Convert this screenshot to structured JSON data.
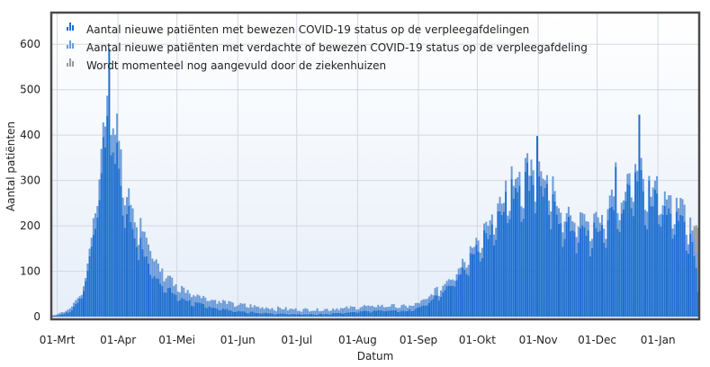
{
  "chart_data": {
    "type": "bar",
    "stacked": true,
    "xlabel": "Datum",
    "ylabel": "Aantal patiënten",
    "ylim": [
      0,
      650
    ],
    "yticks": [
      0,
      100,
      200,
      300,
      400,
      500,
      600
    ],
    "grid": true,
    "legend_position": "top-left",
    "x_start_date": "2020-02-27",
    "x_end_date": "2021-01-21",
    "x_ticks": [
      {
        "label": "01-Mrt",
        "date": "2020-03-01"
      },
      {
        "label": "01-Apr",
        "date": "2020-04-01"
      },
      {
        "label": "01-Mei",
        "date": "2020-05-01"
      },
      {
        "label": "01-Jun",
        "date": "2020-06-01"
      },
      {
        "label": "01-Jul",
        "date": "2020-07-01"
      },
      {
        "label": "01-Aug",
        "date": "2020-08-01"
      },
      {
        "label": "01-Sep",
        "date": "2020-09-01"
      },
      {
        "label": "01-Okt",
        "date": "2020-10-01"
      },
      {
        "label": "01-Nov",
        "date": "2020-11-01"
      },
      {
        "label": "01-Dec",
        "date": "2020-12-01"
      },
      {
        "label": "01-Jan",
        "date": "2021-01-01"
      }
    ],
    "series": [
      {
        "name": "Aantal nieuwe patiënten met bewezen COVID-19 status op de verpleegafdelingen",
        "color": "#1f6fd0"
      },
      {
        "name": "Aantal nieuwe patiënten met verdachte of bewezen COVID-19 status op de verpleegafdeling",
        "color": "#6b9bd8"
      },
      {
        "name": "Wordt momenteel nog aangevuld door de ziekenhuizen",
        "color": "#9a9a9a"
      }
    ],
    "anchors_bewezen": [
      [
        "2020-02-27",
        2
      ],
      [
        "2020-03-03",
        5
      ],
      [
        "2020-03-08",
        15
      ],
      [
        "2020-03-12",
        40
      ],
      [
        "2020-03-16",
        100
      ],
      [
        "2020-03-19",
        200
      ],
      [
        "2020-03-22",
        280
      ],
      [
        "2020-03-25",
        400
      ],
      [
        "2020-03-27",
        500
      ],
      [
        "2020-03-29",
        380
      ],
      [
        "2020-04-01",
        330
      ],
      [
        "2020-04-04",
        260
      ],
      [
        "2020-04-08",
        200
      ],
      [
        "2020-04-12",
        160
      ],
      [
        "2020-04-16",
        120
      ],
      [
        "2020-04-20",
        90
      ],
      [
        "2020-04-25",
        65
      ],
      [
        "2020-05-01",
        45
      ],
      [
        "2020-05-10",
        30
      ],
      [
        "2020-05-20",
        20
      ],
      [
        "2020-06-01",
        12
      ],
      [
        "2020-06-15",
        8
      ],
      [
        "2020-07-01",
        6
      ],
      [
        "2020-07-15",
        6
      ],
      [
        "2020-08-01",
        12
      ],
      [
        "2020-08-15",
        14
      ],
      [
        "2020-08-25",
        12
      ],
      [
        "2020-09-01",
        20
      ],
      [
        "2020-09-10",
        45
      ],
      [
        "2020-09-18",
        80
      ],
      [
        "2020-09-25",
        115
      ],
      [
        "2020-10-01",
        155
      ],
      [
        "2020-10-07",
        195
      ],
      [
        "2020-10-13",
        250
      ],
      [
        "2020-10-20",
        290
      ],
      [
        "2020-10-27",
        310
      ],
      [
        "2020-10-31",
        300
      ],
      [
        "2020-11-05",
        270
      ],
      [
        "2020-11-10",
        230
      ],
      [
        "2020-11-16",
        200
      ],
      [
        "2020-11-22",
        190
      ],
      [
        "2020-11-28",
        185
      ],
      [
        "2020-12-03",
        200
      ],
      [
        "2020-12-08",
        230
      ],
      [
        "2020-12-13",
        250
      ],
      [
        "2020-12-18",
        280
      ],
      [
        "2020-12-22",
        310
      ],
      [
        "2020-12-27",
        250
      ],
      [
        "2021-01-01",
        255
      ],
      [
        "2021-01-06",
        240
      ],
      [
        "2021-01-11",
        225
      ],
      [
        "2021-01-16",
        200
      ],
      [
        "2021-01-19",
        150
      ],
      [
        "2021-01-21",
        60
      ]
    ],
    "anchors_verdacht_extra": [
      [
        "2020-02-27",
        1
      ],
      [
        "2020-03-15",
        10
      ],
      [
        "2020-03-22",
        40
      ],
      [
        "2020-03-27",
        70
      ],
      [
        "2020-04-01",
        60
      ],
      [
        "2020-04-10",
        50
      ],
      [
        "2020-04-20",
        35
      ],
      [
        "2020-05-01",
        22
      ],
      [
        "2020-05-15",
        18
      ],
      [
        "2020-06-01",
        14
      ],
      [
        "2020-07-01",
        10
      ],
      [
        "2020-08-01",
        10
      ],
      [
        "2020-09-01",
        10
      ],
      [
        "2020-10-01",
        22
      ],
      [
        "2020-11-01",
        28
      ],
      [
        "2020-12-01",
        28
      ],
      [
        "2021-01-01",
        30
      ],
      [
        "2021-01-21",
        30
      ]
    ],
    "spikes": [
      {
        "date": "2020-03-27",
        "bewezen": 590,
        "verdacht_extra": 0
      },
      {
        "date": "2020-10-31",
        "bewezen": 398,
        "verdacht_extra": 0
      },
      {
        "date": "2020-12-22",
        "bewezen": 445,
        "verdacht_extra": 0
      },
      {
        "date": "2020-10-26",
        "bewezen": 340,
        "verdacht_extra": 20
      },
      {
        "date": "2020-12-10",
        "bewezen": 330,
        "verdacht_extra": 10
      },
      {
        "date": "2020-12-27",
        "bewezen": 300,
        "verdacht_extra": 10
      }
    ],
    "aangevuld": [
      {
        "date": "2021-01-19",
        "value": 25
      },
      {
        "date": "2021-01-20",
        "value": 60
      },
      {
        "date": "2021-01-21",
        "value": 100
      }
    ]
  }
}
